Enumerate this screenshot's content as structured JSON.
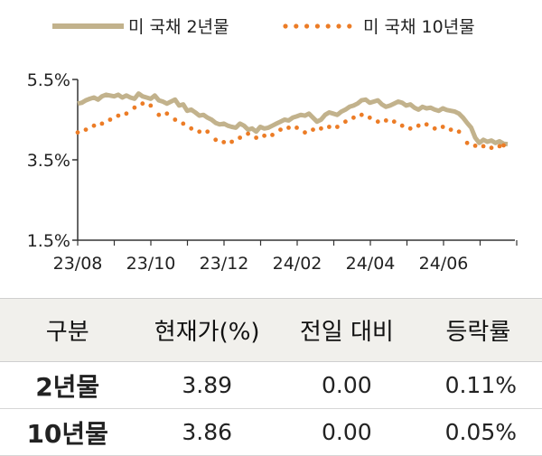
{
  "chart_data": {
    "type": "line",
    "ylim": [
      1.5,
      5.5
    ],
    "yticks": [
      "5.5%",
      "3.5%",
      "1.5%"
    ],
    "x_tick_labels": [
      "23/08",
      "23/10",
      "23/12",
      "24/02",
      "24/04",
      "24/06"
    ],
    "legend_position": "top",
    "grid": false,
    "series": [
      {
        "name": "미 국채 2년물",
        "style": "solid",
        "color": "#c2b28c",
        "values": [
          4.9,
          4.92,
          4.98,
          5.02,
          5.05,
          5.0,
          5.08,
          5.12,
          5.1,
          5.08,
          5.12,
          5.05,
          5.1,
          5.05,
          5.02,
          5.15,
          5.08,
          5.05,
          5.02,
          5.1,
          4.98,
          4.95,
          4.9,
          4.95,
          5.0,
          4.85,
          4.88,
          4.72,
          4.75,
          4.68,
          4.6,
          4.62,
          4.55,
          4.5,
          4.42,
          4.38,
          4.4,
          4.35,
          4.32,
          4.3,
          4.4,
          4.35,
          4.25,
          4.28,
          4.2,
          4.32,
          4.28,
          4.3,
          4.35,
          4.4,
          4.45,
          4.5,
          4.48,
          4.55,
          4.58,
          4.62,
          4.6,
          4.65,
          4.55,
          4.45,
          4.5,
          4.62,
          4.68,
          4.65,
          4.62,
          4.7,
          4.75,
          4.82,
          4.85,
          4.9,
          4.98,
          5.0,
          4.92,
          4.95,
          4.98,
          4.88,
          4.82,
          4.85,
          4.9,
          4.95,
          4.92,
          4.85,
          4.88,
          4.8,
          4.75,
          4.82,
          4.78,
          4.8,
          4.75,
          4.72,
          4.78,
          4.74,
          4.72,
          4.7,
          4.65,
          4.55,
          4.42,
          4.3,
          4.05,
          3.92,
          4.0,
          3.95,
          3.98,
          3.92,
          3.96,
          3.9,
          3.89
        ]
      },
      {
        "name": "미 국채 10년물",
        "style": "dotted",
        "color": "#ec7c26",
        "values": [
          4.18,
          4.2,
          4.25,
          4.3,
          4.35,
          4.32,
          4.4,
          4.45,
          4.5,
          4.55,
          4.6,
          4.7,
          4.65,
          4.75,
          4.8,
          4.85,
          4.9,
          4.88,
          4.85,
          4.7,
          4.62,
          4.58,
          4.65,
          4.55,
          4.5,
          4.45,
          4.4,
          4.35,
          4.28,
          4.22,
          4.2,
          4.25,
          4.2,
          4.1,
          4.0,
          3.95,
          3.94,
          3.92,
          3.95,
          4.0,
          4.05,
          4.1,
          4.15,
          4.1,
          4.05,
          4.2,
          4.1,
          3.95,
          4.12,
          4.2,
          4.25,
          4.22,
          4.3,
          4.28,
          4.3,
          4.25,
          4.18,
          4.2,
          4.25,
          4.15,
          4.28,
          4.35,
          4.32,
          4.25,
          4.32,
          4.38,
          4.45,
          4.5,
          4.55,
          4.6,
          4.62,
          4.58,
          4.55,
          4.5,
          4.45,
          4.5,
          4.48,
          4.42,
          4.45,
          4.4,
          4.35,
          4.3,
          4.28,
          4.32,
          4.35,
          4.4,
          4.38,
          4.3,
          4.28,
          4.25,
          4.32,
          4.28,
          4.25,
          4.18,
          4.2,
          4.05,
          3.92,
          3.82,
          3.85,
          3.8,
          3.84,
          3.82,
          3.8,
          3.82,
          3.84,
          3.86
        ]
      }
    ]
  },
  "table": {
    "headers": [
      "구분",
      "현재가(%)",
      "전일 대비",
      "등락률"
    ],
    "rows": [
      {
        "label": "2년물",
        "price": "3.89",
        "change": "0.00",
        "rate": "0.11%"
      },
      {
        "label": "10년물",
        "price": "3.86",
        "change": "0.00",
        "rate": "0.05%"
      }
    ]
  }
}
